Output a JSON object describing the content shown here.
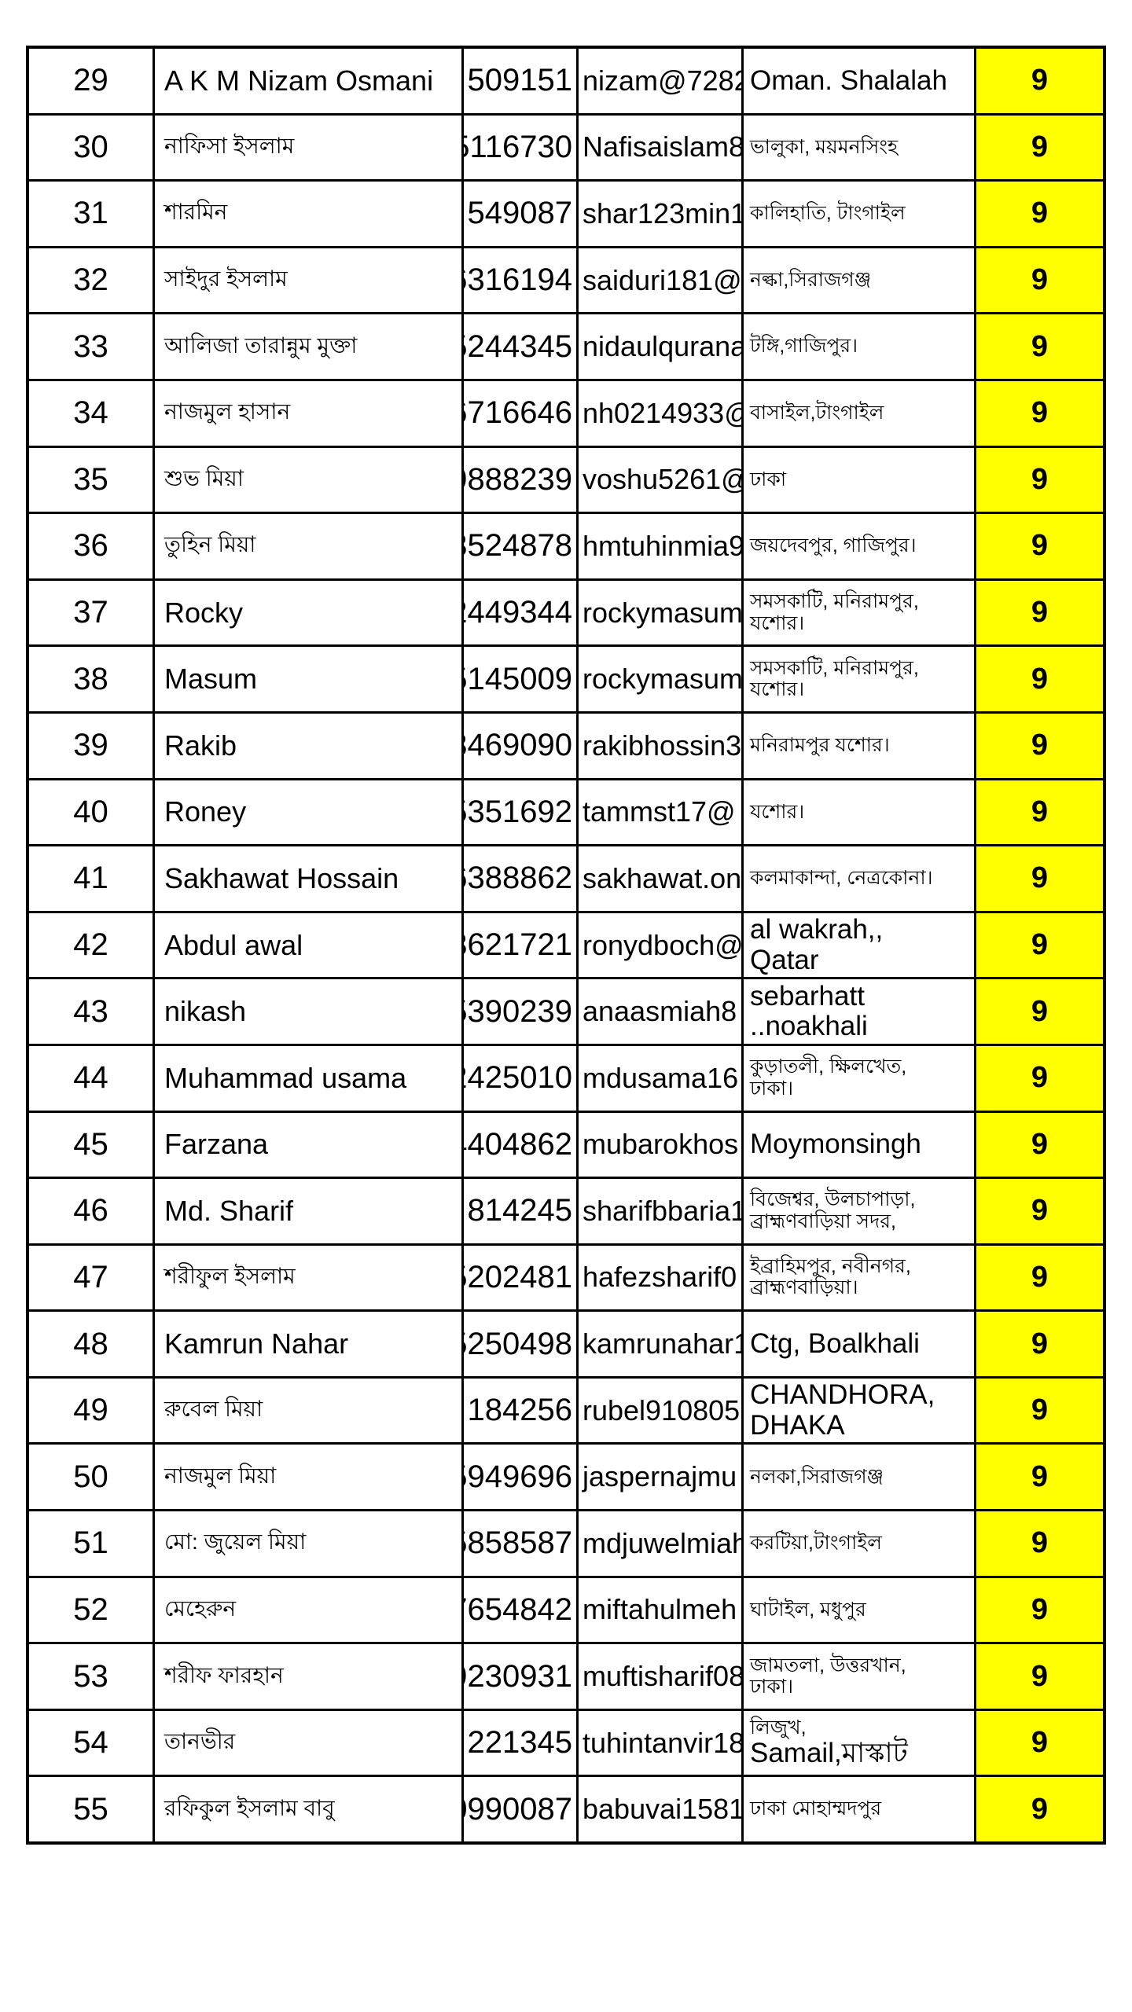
{
  "table": {
    "score_highlight_color": "#FFFF00",
    "rows": [
      {
        "serial": "29",
        "name": "A K M Nizam Osmani",
        "phone": "509151",
        "email": "nizam@7282",
        "location": "Oman. Shalalah",
        "score": "9"
      },
      {
        "serial": "30",
        "name": "নাফিসা ইসলাম",
        "phone": "5116730",
        "email": "Nafisaislam8",
        "location": "ভালুকা, ময়মনসিংহ",
        "score": "9"
      },
      {
        "serial": "31",
        "name": "শারমিন",
        "phone": "549087",
        "email": "shar123min1",
        "location": "কালিহাতি, টাংগাইল",
        "score": "9"
      },
      {
        "serial": "32",
        "name": "সাইদুর ইসলাম",
        "phone": "6316194",
        "email": "saiduri181@",
        "location": "নল্কা,সিরাজগঞ্জ",
        "score": "9"
      },
      {
        "serial": "33",
        "name": "আলিজা তারান্নুম মুক্তা",
        "phone": "5244345",
        "email": "nidaulqurana",
        "location": "টঙ্গি,গাজিপুর।",
        "score": "9"
      },
      {
        "serial": "34",
        "name": "নাজমুল হাসান",
        "phone": "6716646",
        "email": "nh0214933@",
        "location": "বাসাইল,টাংগাইল",
        "score": "9"
      },
      {
        "serial": "35",
        "name": "শুভ মিয়া",
        "phone": "9888239",
        "email": "voshu5261@",
        "location": "ঢাকা",
        "score": "9"
      },
      {
        "serial": "36",
        "name": "তুহিন মিয়া",
        "phone": "3524878",
        "email": "hmtuhinmia9",
        "location": "জয়দেবপুর, গাজিপুর।",
        "score": "9"
      },
      {
        "serial": "37",
        "name": "Rocky",
        "phone": "2449344",
        "email": "rockymasum",
        "location": "সমসকাটি, মনিরামপুর,\nযশোর।",
        "score": "9"
      },
      {
        "serial": "38",
        "name": "Masum",
        "phone": "5145009",
        "email": "rockymasum",
        "location": "সমসকাটি, মনিরামপুর,\nযশোর।",
        "score": "9"
      },
      {
        "serial": "39",
        "name": "Rakib",
        "phone": "3469090",
        "email": "rakibhossin3",
        "location": "মনিরামপুর যশোর।",
        "score": "9"
      },
      {
        "serial": "40",
        "name": "Roney",
        "phone": "5351692",
        "email": "tammst17@",
        "location": "যশোর।",
        "score": "9"
      },
      {
        "serial": "41",
        "name": "Sakhawat Hossain",
        "phone": "6388862",
        "email": "sakhawat.on",
        "location": "কলমাকান্দা, নেত্রকোনা।",
        "score": "9"
      },
      {
        "serial": "42",
        "name": "Abdul awal",
        "phone": "3621721",
        "email": "ronydboch@",
        "location": "al wakrah,,\nQatar",
        "score": "9"
      },
      {
        "serial": "43",
        "name": "nikash",
        "phone": "5390239",
        "email": "anaasmiah8",
        "location": "sebarhatt\n..noakhali",
        "score": "9"
      },
      {
        "serial": "44",
        "name": "Muhammad usama",
        "phone": "2425010",
        "email": "mdusama16",
        "location": "কুড়াতলী, ক্ষিলখেত,\nঢাকা।",
        "score": "9"
      },
      {
        "serial": "45",
        "name": "Farzana",
        "phone": "4404862",
        "email": "mubarokhos",
        "location": "Moymonsingh",
        "score": "9"
      },
      {
        "serial": "46",
        "name": "Md. Sharif",
        "phone": "814245",
        "email": "sharifbbaria1",
        "location": "বিজেশ্বর, উলচাপাড়া,\nব্রাহ্মণবাড়িয়া সদর,",
        "score": "9"
      },
      {
        "serial": "47",
        "name": "শরীফুল ইসলাম",
        "phone": "5202481",
        "email": "hafezsharif0",
        "location": "ইব্রাহিমপুর, নবীনগর,\nব্রাহ্মণবাড়িয়া।",
        "score": "9"
      },
      {
        "serial": "48",
        "name": "Kamrun Nahar",
        "phone": "5250498",
        "email": "kamrunahar1",
        "location": "Ctg, Boalkhali",
        "score": "9"
      },
      {
        "serial": "49",
        "name": "রুবেল মিয়া",
        "phone": "184256",
        "email": "rubel910805",
        "location": "CHANDHORA,\nDHAKA",
        "score": "9"
      },
      {
        "serial": "50",
        "name": "নাজমুল মিয়া",
        "phone": "5949696",
        "email": "jaspernajmu",
        "location": "নলকা,সিরাজগঞ্জ",
        "score": "9"
      },
      {
        "serial": "51",
        "name": "মো: জুয়েল মিয়া",
        "phone": "5858587",
        "email": "mdjuwelmiah",
        "location": "করটিয়া,টাংগাইল",
        "score": "9"
      },
      {
        "serial": "52",
        "name": "মেহেরুন",
        "phone": "7654842",
        "email": "miftahulmeh",
        "location": "ঘাটাইল, মধুপুর",
        "score": "9"
      },
      {
        "serial": "53",
        "name": "শরীফ ফারহান",
        "phone": "9230931",
        "email": "muftisharif08",
        "location": "জামতলা, উত্তরখান,\nঢাকা।",
        "score": "9"
      },
      {
        "serial": "54",
        "name": "তানভীর",
        "phone": "221345",
        "email": "tuhintanvir18",
        "location": "লিজুখ,\nSamail,মাস্কাট",
        "score": "9"
      },
      {
        "serial": "55",
        "name": "রফিকুল ইসলাম বাবু",
        "phone": "0990087",
        "email": "babuvai1581",
        "location": "ঢাকা মোহাম্মদপুর",
        "score": "9"
      }
    ]
  }
}
